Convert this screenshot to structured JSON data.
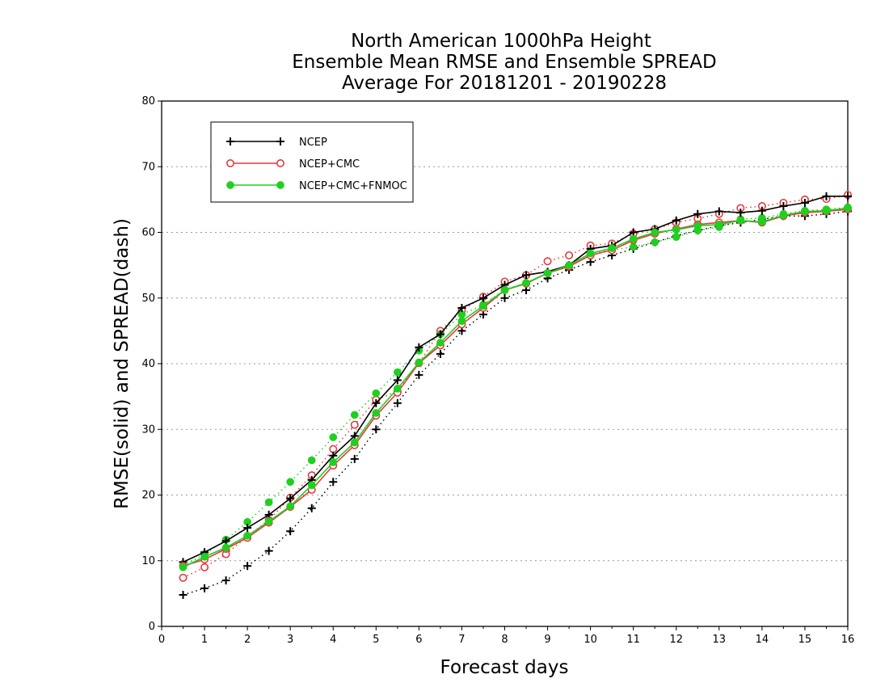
{
  "chart_data": {
    "type": "line",
    "title": [
      "North American 1000hPa Height",
      "Ensemble Mean RMSE and Ensemble SPREAD",
      "Average For 20181201 - 20190228"
    ],
    "xlabel": "Forecast days",
    "ylabel": "RMSE(solid) and SPREAD(dash)",
    "xlim": [
      0,
      16
    ],
    "ylim": [
      0,
      80
    ],
    "xticks": [
      "0",
      "1",
      "2",
      "3",
      "4",
      "5",
      "6",
      "7",
      "8",
      "9",
      "10",
      "11",
      "12",
      "13",
      "14",
      "15",
      "16"
    ],
    "yticks": [
      "0",
      "10",
      "20",
      "30",
      "40",
      "50",
      "60",
      "70",
      "80"
    ],
    "grid": "horizontal dotted",
    "legend_position": "top-left",
    "x": [
      0.5,
      1,
      1.5,
      2,
      2.5,
      3,
      3.5,
      4,
      4.5,
      5,
      5.5,
      6,
      6.5,
      7,
      7.5,
      8,
      8.5,
      9,
      9.5,
      10,
      10.5,
      11,
      11.5,
      12,
      12.5,
      13,
      13.5,
      14,
      14.5,
      15,
      15.5,
      16
    ],
    "series": [
      {
        "name": "NCEP",
        "color": "#000000",
        "marker": "plus",
        "rmse": [
          9.8,
          11.3,
          13.0,
          15.0,
          17.0,
          19.5,
          22.3,
          26.0,
          29.0,
          34.0,
          37.5,
          42.5,
          44.5,
          48.5,
          50.0,
          52.0,
          53.5,
          54.0,
          55.0,
          57.5,
          58.0,
          60.0,
          60.5,
          61.8,
          62.8,
          63.2,
          63.0,
          63.3,
          64.0,
          64.5,
          65.5,
          65.5
        ],
        "spread": [
          4.8,
          5.8,
          7.0,
          9.2,
          11.5,
          14.5,
          18.0,
          22.0,
          25.5,
          30.0,
          34.0,
          38.3,
          41.5,
          45.0,
          47.5,
          50.0,
          51.2,
          53.0,
          54.3,
          55.5,
          56.5,
          57.5,
          58.5,
          59.5,
          60.3,
          61.0,
          61.5,
          62.0,
          62.5,
          62.5,
          62.8,
          63.2
        ]
      },
      {
        "name": "NCEP+CMC",
        "color": "#e8383d",
        "marker": "open-circle",
        "rmse": [
          9.2,
          10.2,
          11.8,
          13.5,
          15.8,
          18.2,
          20.8,
          24.5,
          27.6,
          32.1,
          35.6,
          40.1,
          42.8,
          46.0,
          48.5,
          51.2,
          52.2,
          53.8,
          54.8,
          56.5,
          57.3,
          58.8,
          59.8,
          60.5,
          61.2,
          61.5,
          61.8,
          61.5,
          62.5,
          63.0,
          63.2,
          63.5
        ],
        "spread": [
          7.4,
          9.0,
          11.0,
          13.7,
          16.2,
          19.6,
          23.0,
          27.0,
          30.7,
          34.5,
          35.8,
          40.1,
          45.0,
          48.1,
          50.2,
          52.5,
          53.5,
          55.6,
          56.5,
          58.0,
          58.3,
          59.8,
          60.5,
          61.5,
          62.1,
          62.8,
          63.7,
          64.0,
          64.5,
          65.0,
          65.1,
          65.7
        ]
      },
      {
        "name": "NCEP+CMC+FNMOC",
        "color": "#1fd01f",
        "marker": "filled-circle",
        "rmse": [
          9.0,
          10.6,
          12.0,
          13.8,
          16.0,
          18.3,
          21.5,
          25.0,
          28.0,
          32.5,
          36.2,
          40.2,
          43.2,
          46.5,
          48.8,
          51.2,
          52.3,
          53.8,
          55.0,
          56.8,
          57.6,
          59.0,
          60.0,
          60.4,
          61.0,
          61.2,
          61.8,
          61.6,
          62.6,
          63.2,
          63.3,
          63.7
        ],
        "spread": [
          9.2,
          11.0,
          13.2,
          15.9,
          18.9,
          22.0,
          25.3,
          28.8,
          32.2,
          35.5,
          38.7,
          42.0,
          44.5,
          47.5,
          49.0,
          51.3,
          52.3,
          53.8,
          55.0,
          56.8,
          57.3,
          57.8,
          58.5,
          59.3,
          60.3,
          60.8,
          62.0,
          62.2,
          62.8,
          63.3,
          63.5,
          63.8
        ]
      }
    ]
  }
}
